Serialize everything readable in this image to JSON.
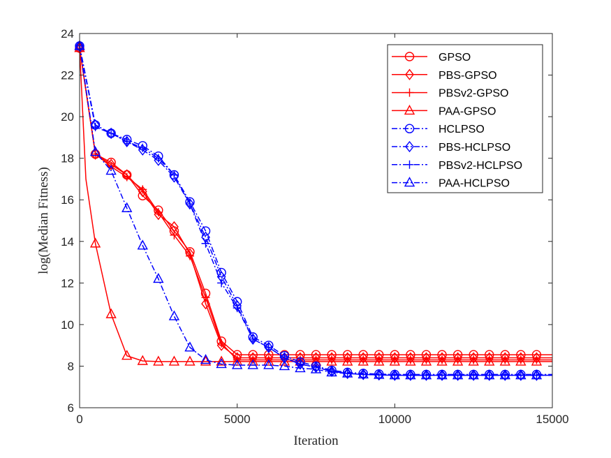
{
  "chart_data": {
    "type": "line",
    "title": "",
    "xlabel": "Iteration",
    "ylabel": "log(Median Fitness)",
    "xlim": [
      0,
      15000
    ],
    "ylim": [
      6,
      24
    ],
    "xticks": [
      0,
      5000,
      10000,
      15000
    ],
    "yticks": [
      6,
      8,
      10,
      12,
      14,
      16,
      18,
      20,
      22,
      24
    ],
    "grid": false,
    "legend_position": "top-right",
    "series": [
      {
        "name": "GPSO",
        "color": "#ff0000",
        "dash": "solid",
        "marker": "circle",
        "x": [
          0,
          500,
          1000,
          1500,
          2000,
          2500,
          3000,
          3500,
          4000,
          4500,
          5000,
          5500,
          6000,
          6500,
          7000,
          7500,
          8000,
          8500,
          9000,
          9500,
          10000,
          10500,
          11000,
          11500,
          12000,
          12500,
          13000,
          13500,
          14000,
          14500,
          15000
        ],
        "y": [
          23.3,
          18.2,
          17.8,
          17.2,
          16.2,
          15.5,
          14.5,
          13.5,
          11.5,
          9.2,
          8.55,
          8.55,
          8.55,
          8.55,
          8.55,
          8.55,
          8.55,
          8.55,
          8.55,
          8.55,
          8.55,
          8.55,
          8.55,
          8.55,
          8.55,
          8.55,
          8.55,
          8.55,
          8.55,
          8.55,
          8.55
        ]
      },
      {
        "name": "PBS-GPSO",
        "color": "#ff0000",
        "dash": "solid",
        "marker": "diamond",
        "x": [
          0,
          500,
          1000,
          1500,
          2000,
          2500,
          3000,
          3500,
          4000,
          4500,
          5000,
          5500,
          6000,
          6500,
          7000,
          7500,
          8000,
          8500,
          9000,
          9500,
          10000,
          10500,
          11000,
          11500,
          12000,
          12500,
          13000,
          13500,
          14000,
          14500,
          15000
        ],
        "y": [
          23.3,
          18.2,
          17.7,
          17.2,
          16.4,
          15.3,
          14.7,
          13.4,
          11.0,
          9.0,
          8.4,
          8.4,
          8.4,
          8.4,
          8.4,
          8.4,
          8.4,
          8.4,
          8.4,
          8.4,
          8.4,
          8.4,
          8.4,
          8.4,
          8.4,
          8.4,
          8.4,
          8.4,
          8.4,
          8.4,
          8.4
        ]
      },
      {
        "name": "PBSv2-GPSO",
        "color": "#ff0000",
        "dash": "solid",
        "marker": "plus",
        "x": [
          0,
          500,
          1000,
          1500,
          2000,
          2500,
          3000,
          3500,
          4000,
          4500,
          5000,
          5500,
          6000,
          6500,
          7000,
          7500,
          8000,
          8500,
          9000,
          9500,
          10000,
          10500,
          11000,
          11500,
          12000,
          12500,
          13000,
          13500,
          14000,
          14500,
          15000
        ],
        "y": [
          23.3,
          18.2,
          17.6,
          17.1,
          16.5,
          15.4,
          14.3,
          13.3,
          11.3,
          9.1,
          8.3,
          8.3,
          8.3,
          8.3,
          8.3,
          8.3,
          8.3,
          8.3,
          8.3,
          8.3,
          8.3,
          8.3,
          8.3,
          8.3,
          8.3,
          8.3,
          8.3,
          8.3,
          8.3,
          8.3,
          8.3
        ]
      },
      {
        "name": "PAA-GPSO",
        "color": "#ff0000",
        "dash": "solid",
        "marker": "triangle",
        "x": [
          0,
          200,
          500,
          1000,
          1500,
          2000,
          2500,
          3000,
          3500,
          4000,
          4500,
          5000,
          5500,
          6000,
          6500,
          7000,
          7500,
          8000,
          8500,
          9000,
          9500,
          10000,
          10500,
          11000,
          11500,
          12000,
          12500,
          13000,
          13500,
          14000,
          14500,
          15000
        ],
        "y": [
          23.3,
          17.0,
          13.9,
          10.5,
          8.5,
          8.25,
          8.22,
          8.22,
          8.22,
          8.22,
          8.22,
          8.22,
          8.22,
          8.22,
          8.22,
          8.22,
          8.22,
          8.22,
          8.22,
          8.22,
          8.22,
          8.22,
          8.22,
          8.22,
          8.22,
          8.22,
          8.22,
          8.22,
          8.22,
          8.22,
          8.22,
          8.22
        ]
      },
      {
        "name": "HCLPSO",
        "color": "#0000ff",
        "dash": "dashdot",
        "marker": "circle",
        "x": [
          0,
          500,
          1000,
          1500,
          2000,
          2500,
          3000,
          3500,
          4000,
          4500,
          5000,
          5500,
          6000,
          6500,
          7000,
          7500,
          8000,
          8500,
          9000,
          9500,
          10000,
          10500,
          11000,
          11500,
          12000,
          12500,
          13000,
          13500,
          14000,
          14500,
          15000
        ],
        "y": [
          23.4,
          19.6,
          19.2,
          18.9,
          18.6,
          18.1,
          17.2,
          15.9,
          14.5,
          12.5,
          11.1,
          9.4,
          9.0,
          8.5,
          8.2,
          8.0,
          7.8,
          7.7,
          7.65,
          7.62,
          7.6,
          7.6,
          7.6,
          7.6,
          7.6,
          7.6,
          7.6,
          7.6,
          7.6,
          7.6,
          7.6
        ]
      },
      {
        "name": "PBS-HCLPSO",
        "color": "#0000ff",
        "dash": "dashdot",
        "marker": "diamond",
        "x": [
          0,
          500,
          1000,
          1500,
          2000,
          2500,
          3000,
          3500,
          4000,
          4500,
          5000,
          5500,
          6000,
          6500,
          7000,
          7500,
          8000,
          8500,
          9000,
          9500,
          10000,
          10500,
          11000,
          11500,
          12000,
          12500,
          13000,
          13500,
          14000,
          14500,
          15000
        ],
        "y": [
          23.4,
          19.6,
          19.2,
          18.8,
          18.4,
          17.9,
          17.1,
          15.8,
          14.2,
          12.3,
          10.9,
          9.3,
          8.9,
          8.4,
          8.1,
          7.95,
          7.75,
          7.65,
          7.6,
          7.58,
          7.56,
          7.56,
          7.56,
          7.56,
          7.56,
          7.56,
          7.56,
          7.56,
          7.56,
          7.56,
          7.56
        ]
      },
      {
        "name": "PBSv2-HCLPSO",
        "color": "#0000ff",
        "dash": "dashdot",
        "marker": "plus",
        "x": [
          0,
          500,
          1000,
          1500,
          2000,
          2500,
          3000,
          3500,
          4000,
          4500,
          5000,
          5500,
          6000,
          6500,
          7000,
          7500,
          8000,
          8500,
          9000,
          9500,
          10000,
          10500,
          11000,
          11500,
          12000,
          12500,
          13000,
          13500,
          14000,
          14500,
          15000
        ],
        "y": [
          23.4,
          19.5,
          19.2,
          18.8,
          18.5,
          18.0,
          17.2,
          15.8,
          13.9,
          12.0,
          10.8,
          9.3,
          8.9,
          8.4,
          8.1,
          7.95,
          7.75,
          7.65,
          7.6,
          7.58,
          7.56,
          7.56,
          7.56,
          7.56,
          7.56,
          7.56,
          7.56,
          7.56,
          7.56,
          7.56,
          7.56
        ]
      },
      {
        "name": "PAA-HCLPSO",
        "color": "#0000ff",
        "dash": "dashdot",
        "marker": "triangle",
        "x": [
          0,
          500,
          1000,
          1500,
          2000,
          2500,
          3000,
          3500,
          4000,
          4500,
          5000,
          5500,
          6000,
          6500,
          7000,
          7500,
          8000,
          8500,
          9000,
          9500,
          10000,
          10500,
          11000,
          11500,
          12000,
          12500,
          13000,
          13500,
          14000,
          14500,
          15000
        ],
        "y": [
          23.4,
          18.3,
          17.4,
          15.6,
          13.8,
          12.2,
          10.4,
          8.9,
          8.3,
          8.1,
          8.05,
          8.05,
          8.05,
          8.0,
          7.9,
          7.85,
          7.7,
          7.65,
          7.6,
          7.58,
          7.56,
          7.56,
          7.56,
          7.56,
          7.56,
          7.56,
          7.56,
          7.56,
          7.56,
          7.56,
          7.56
        ]
      }
    ]
  }
}
